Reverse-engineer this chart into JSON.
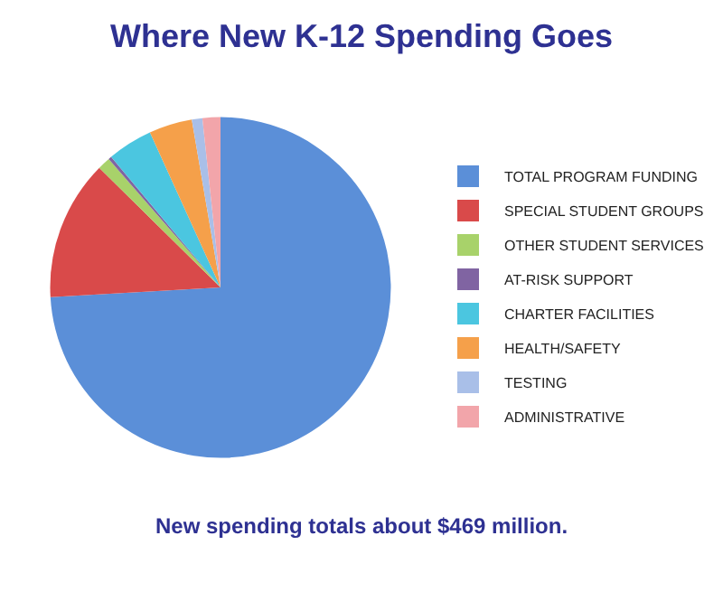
{
  "chart_data": {
    "type": "pie",
    "title": "Where New K-12 Spending Goes",
    "categories": [
      "TOTAL PROGRAM FUNDING",
      "SPECIAL STUDENT GROUPS",
      "OTHER STUDENT SERVICES",
      "AT-RISK SUPPORT",
      "CHARTER FACILITIES",
      "HEALTH/SAFETY",
      "TESTING",
      "ADMINISTRATIVE"
    ],
    "values": [
      74.1,
      13.3,
      1.2,
      0.3,
      4.3,
      4.1,
      1.0,
      1.7
    ],
    "colors": [
      "#5b8fd8",
      "#d94a4a",
      "#a8d26a",
      "#8064a2",
      "#4bc6e0",
      "#f5a04a",
      "#a9bfe8",
      "#f2a5aa"
    ],
    "legend": "right",
    "annotations": [
      "New spending totals about $469 million."
    ]
  }
}
